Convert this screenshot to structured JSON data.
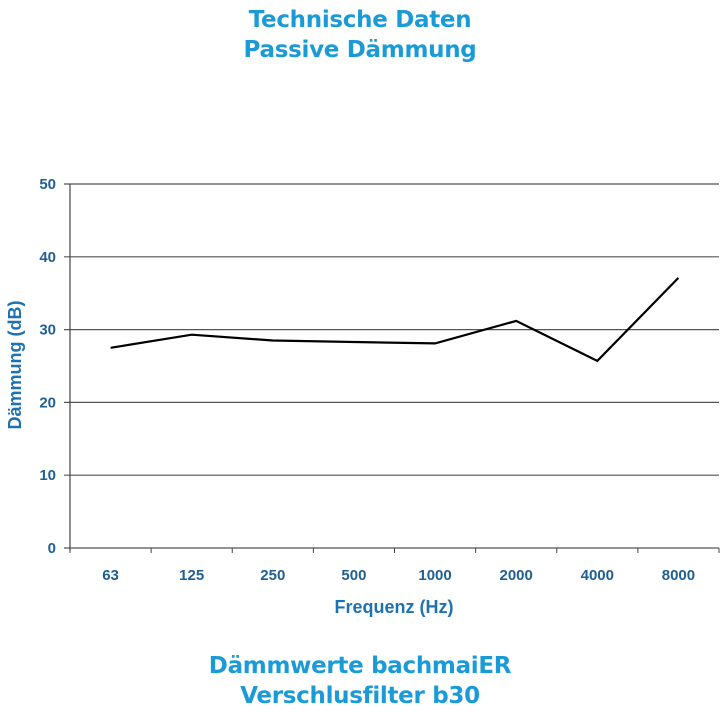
{
  "header": {
    "line1": "Technische Daten",
    "line2": "Passive Dämmung"
  },
  "footer": {
    "line1": "Dämmwerte bachmaiER",
    "line2": "Verschlusfilter b30"
  },
  "colors": {
    "title": "#1a9bd7",
    "tick_label": "#1f5f96",
    "axis_title": "#1f72b2",
    "line": "#000000",
    "grid": "#555555"
  },
  "chart_data": {
    "type": "line",
    "title": "Technische Daten Passive Dämmung",
    "subtitle": "Dämmwerte bachmaiER Verschlusfilter b30",
    "xlabel": "Frequenz (Hz)",
    "ylabel": "Dämmung (dB)",
    "categories": [
      "63",
      "125",
      "250",
      "500",
      "1000",
      "2000",
      "4000",
      "8000"
    ],
    "series": [
      {
        "name": "Dämmung",
        "values": [
          27.5,
          29.3,
          28.5,
          28.3,
          28.1,
          31.2,
          25.7,
          37.1
        ]
      }
    ],
    "yticks": [
      0,
      10,
      20,
      30,
      40,
      50
    ],
    "ylim": [
      0,
      50
    ],
    "grid": true,
    "legend": "none"
  }
}
